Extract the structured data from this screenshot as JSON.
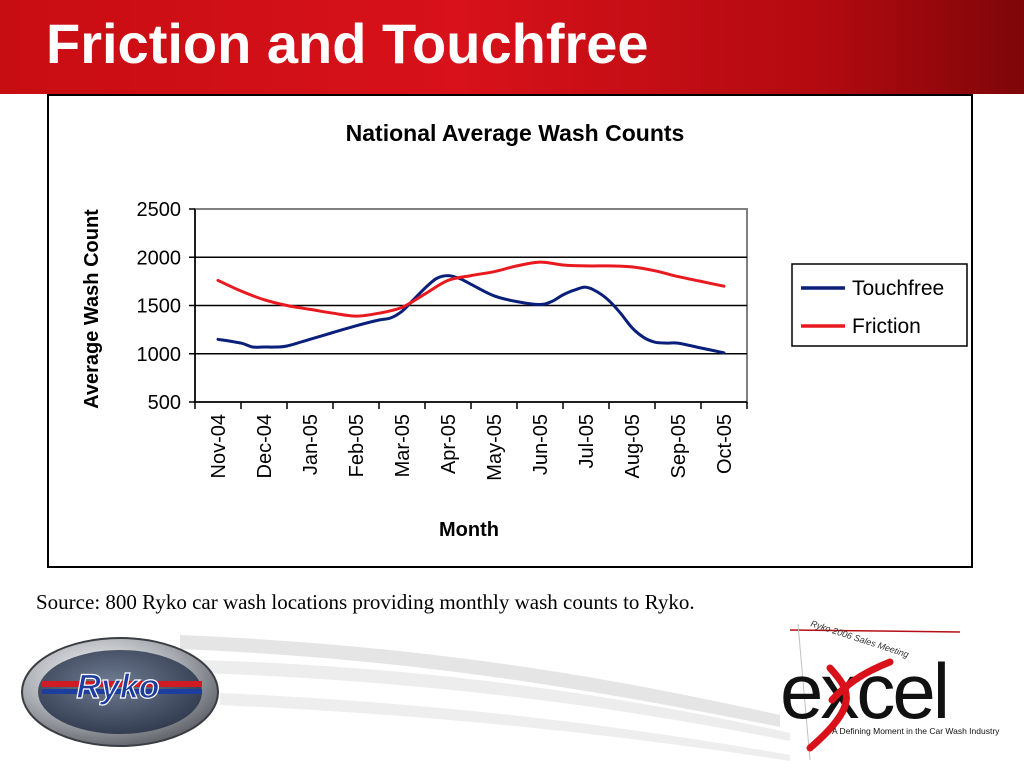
{
  "slide": {
    "title": "Friction and Touchfree",
    "source_note": "Source:  800 Ryko car wash locations providing monthly wash counts to Ryko."
  },
  "logos": {
    "ryko": {
      "text": "Ryko",
      "icon": "ryko-logo"
    },
    "excel": {
      "word": "excel",
      "top_caption": "Ryko 2006 Sales Meeting",
      "bottom_caption": "A Defining Moment in the Car Wash Industry",
      "icon": "excel-logo"
    }
  },
  "colors": {
    "header_red": "#d8111a",
    "touchfree": "#0a1f7a",
    "friction": "#e8191f"
  },
  "chart_data": {
    "type": "line",
    "title": "National Average Wash Counts",
    "xlabel": "Month",
    "ylabel": "Average Wash Count",
    "categories": [
      "Nov-04",
      "Dec-04",
      "Jan-05",
      "Feb-05",
      "Mar-05",
      "Apr-05",
      "May-05",
      "Jun-05",
      "Jul-05",
      "Aug-05",
      "Sep-05",
      "Oct-05"
    ],
    "ylim": [
      500,
      2500
    ],
    "yticks": [
      2500,
      2000,
      1500,
      1000,
      500
    ],
    "grid": true,
    "legend_position": "right",
    "series": [
      {
        "name": "Touchfree",
        "color": "#0a1f7a",
        "x": [
          0,
          0.5,
          0.75,
          1,
          1.25,
          1.5,
          2,
          2.5,
          3,
          3.5,
          3.75,
          4,
          4.25,
          4.5,
          4.75,
          5,
          5.25,
          5.5,
          6,
          6.5,
          7,
          7.25,
          7.5,
          7.75,
          8,
          8.25,
          8.5,
          8.75,
          9,
          9.25,
          9.5,
          9.75,
          10,
          10.5,
          11
        ],
        "y": [
          1150,
          1110,
          1070,
          1070,
          1070,
          1080,
          1150,
          1220,
          1290,
          1350,
          1370,
          1440,
          1560,
          1680,
          1780,
          1810,
          1780,
          1720,
          1600,
          1540,
          1510,
          1540,
          1610,
          1660,
          1690,
          1640,
          1550,
          1420,
          1270,
          1170,
          1120,
          1110,
          1110,
          1060,
          1010
        ]
      },
      {
        "name": "Friction",
        "color": "#e8191f",
        "x": [
          0,
          0.5,
          1,
          1.5,
          2,
          2.5,
          3,
          3.5,
          4,
          4.5,
          5,
          5.5,
          6,
          6.5,
          7,
          7.5,
          8,
          8.5,
          9,
          9.5,
          10,
          10.5,
          11
        ],
        "y": [
          1760,
          1650,
          1560,
          1500,
          1460,
          1420,
          1390,
          1420,
          1480,
          1620,
          1760,
          1810,
          1850,
          1910,
          1950,
          1920,
          1910,
          1910,
          1900,
          1860,
          1800,
          1750,
          1700
        ]
      }
    ]
  }
}
